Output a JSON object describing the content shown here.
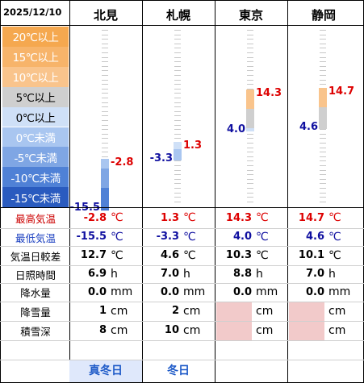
{
  "date": "2025/12/10",
  "stations": [
    {
      "name": "北見",
      "max_c": "-2.8",
      "min_c": "-15.5",
      "range_c": "12.7",
      "sunshine_h": "6.9",
      "precip_mm": "0.0",
      "snowfall_cm": "1",
      "snow_depth_cm": "8",
      "badge": "真冬日",
      "badge_color": "#1f5bc8"
    },
    {
      "name": "札幌",
      "max_c": "1.3",
      "min_c": "-3.3",
      "range_c": "4.6",
      "sunshine_h": "7.0",
      "precip_mm": "0.0",
      "snowfall_cm": "2",
      "snow_depth_cm": "10",
      "badge": "冬日",
      "badge_color": "#1f5bc8"
    },
    {
      "name": "東京",
      "max_c": "14.3",
      "min_c": "4.0",
      "range_c": "10.3",
      "sunshine_h": "8.8",
      "precip_mm": "0.0",
      "snowfall_cm": "",
      "snow_depth_cm": "",
      "badge": "",
      "badge_color": ""
    },
    {
      "name": "静岡",
      "max_c": "14.7",
      "min_c": "4.6",
      "range_c": "10.1",
      "sunshine_h": "7.0",
      "precip_mm": "0.0",
      "snowfall_cm": "",
      "snow_depth_cm": "",
      "badge": "",
      "badge_color": ""
    }
  ],
  "bands": [
    {
      "label": "20℃以上",
      "color": "#f5a84f"
    },
    {
      "label": "15℃以上",
      "color": "#f7b46a"
    },
    {
      "label": "10℃以上",
      "color": "#f9c48c"
    },
    {
      "label": "5℃以上",
      "color": "#cfcfcf"
    },
    {
      "label": "0℃以上",
      "color": "#cfe0f7"
    },
    {
      "label": "0℃未満",
      "color": "#a9c6f0"
    },
    {
      "label": "-5℃未満",
      "color": "#7fa6e4"
    },
    {
      "label": "-10℃未満",
      "color": "#4f81d6"
    },
    {
      "label": "-15℃未満",
      "color": "#2a5bbf"
    }
  ],
  "rows": {
    "max": "最高気温",
    "min": "最低気温",
    "range": "気温日較差",
    "sun": "日照時間",
    "precip": "降水量",
    "snowfall": "降雪量",
    "depth": "積雪深"
  },
  "units": {
    "temp": "℃",
    "hour": "h",
    "mm": "mm",
    "cm": "cm"
  },
  "colors": {
    "max": "#dd0000",
    "min": "#1010a0",
    "max_label": "#cc0000",
    "min_label": "#1a3fc0",
    "blank": "#f2caca"
  },
  "chart_data": {
    "type": "bar",
    "categories": [
      "北見",
      "札幌",
      "東京",
      "静岡"
    ],
    "series": [
      {
        "name": "最高気温",
        "values": [
          -2.8,
          1.3,
          14.3,
          14.7
        ]
      },
      {
        "name": "最低気温",
        "values": [
          -15.5,
          -3.3,
          4.0,
          4.6
        ]
      }
    ],
    "ylim": [
      -20,
      25
    ]
  }
}
